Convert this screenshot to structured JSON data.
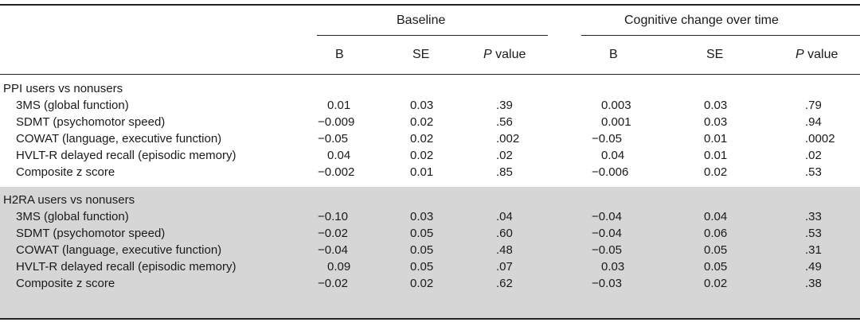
{
  "header": {
    "group1": "Baseline",
    "group2": "Cognitive change over time",
    "columns": [
      {
        "main": "B",
        "suffix": ""
      },
      {
        "main": "SE",
        "suffix": ""
      },
      {
        "main": "P",
        "suffix": " value"
      },
      {
        "main": "B",
        "suffix": ""
      },
      {
        "main": "SE",
        "suffix": ""
      },
      {
        "main": "P",
        "suffix": " value"
      }
    ]
  },
  "sections": [
    {
      "title": "PPI users vs nonusers",
      "rows": [
        {
          "label": "3MS (global function)",
          "values": [
            "0.01",
            "0.03",
            ".39",
            "0.003",
            "0.03",
            ".79"
          ]
        },
        {
          "label": "SDMT (psychomotor speed)",
          "values": [
            "−0.009",
            "0.02",
            ".56",
            "0.001",
            "0.03",
            ".94"
          ]
        },
        {
          "label": "COWAT (language, executive function)",
          "values": [
            "−0.05",
            "0.02",
            ".002",
            "−0.05",
            "0.01",
            ".0002"
          ]
        },
        {
          "label": "HVLT-R delayed recall (episodic memory)",
          "values": [
            "0.04",
            "0.02",
            ".02",
            "0.04",
            "0.01",
            ".02"
          ]
        },
        {
          "label": "Composite z score",
          "values": [
            "−0.002",
            "0.01",
            ".85",
            "−0.006",
            "0.02",
            ".53"
          ]
        }
      ]
    },
    {
      "title": "H2RA users vs nonusers",
      "rows": [
        {
          "label": "3MS (global function)",
          "values": [
            "−0.10",
            "0.03",
            ".04",
            "−0.04",
            "0.04",
            ".33"
          ]
        },
        {
          "label": "SDMT (psychomotor speed)",
          "values": [
            "−0.02",
            "0.05",
            ".60",
            "−0.04",
            "0.06",
            ".53"
          ]
        },
        {
          "label": "COWAT (language, executive function)",
          "values": [
            "−0.04",
            "0.05",
            ".48",
            "−0.05",
            "0.05",
            ".31"
          ]
        },
        {
          "label": "HVLT-R delayed recall (episodic memory)",
          "values": [
            "0.09",
            "0.05",
            ".07",
            "0.03",
            "0.05",
            ".49"
          ]
        },
        {
          "label": "Composite z score",
          "values": [
            "−0.02",
            "0.02",
            ".62",
            "−0.03",
            "0.02",
            ".38"
          ]
        }
      ]
    }
  ]
}
